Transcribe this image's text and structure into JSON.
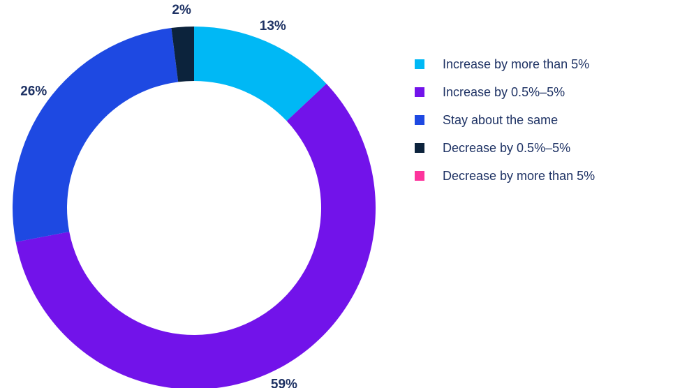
{
  "chart_data": {
    "type": "pie",
    "variant": "donut",
    "legend_position": "right",
    "label_color": "#1e3264",
    "categories": [
      "Increase by more than 5%",
      "Increase by 0.5%–5%",
      "Stay about the same",
      "Decrease by 0.5%–5%",
      "Decrease by more than 5%"
    ],
    "values": [
      13,
      59,
      26,
      2,
      0
    ],
    "data_labels": [
      "13%",
      "59%",
      "26%",
      "2%",
      ""
    ],
    "colors": [
      "#00b8f5",
      "#7213ea",
      "#1e49e2",
      "#0c233c",
      "#fd349c"
    ]
  }
}
